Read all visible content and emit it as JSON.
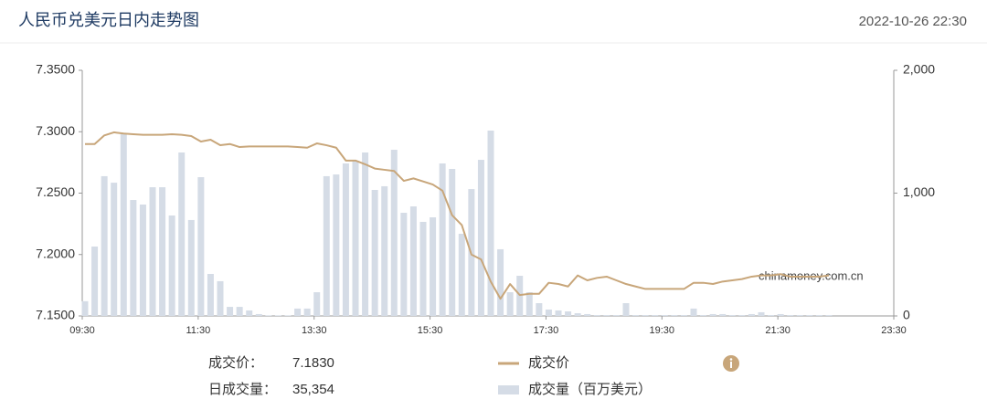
{
  "header": {
    "title": "人民币兑美元日内走势图",
    "timestamp": "2022-10-26 22:30"
  },
  "chart_data": {
    "type": "combo",
    "x": [
      "09:30",
      "09:40",
      "09:50",
      "10:00",
      "10:10",
      "10:20",
      "10:30",
      "10:40",
      "10:50",
      "11:00",
      "11:10",
      "11:20",
      "11:30",
      "11:40",
      "11:50",
      "12:00",
      "12:10",
      "12:20",
      "12:30",
      "12:40",
      "12:50",
      "13:00",
      "13:10",
      "13:20",
      "13:30",
      "13:40",
      "13:50",
      "14:00",
      "14:10",
      "14:20",
      "14:30",
      "14:40",
      "14:50",
      "15:00",
      "15:10",
      "15:20",
      "15:30",
      "15:40",
      "15:50",
      "16:00",
      "16:10",
      "16:20",
      "16:30",
      "16:40",
      "16:50",
      "17:00",
      "17:10",
      "17:20",
      "17:30",
      "17:40",
      "17:50",
      "18:00",
      "18:10",
      "18:20",
      "18:30",
      "18:40",
      "18:50",
      "19:00",
      "19:10",
      "19:20",
      "19:30",
      "19:40",
      "19:50",
      "20:00",
      "20:10",
      "20:20",
      "20:30",
      "20:40",
      "20:50",
      "21:00",
      "21:10",
      "21:20",
      "21:30",
      "21:40",
      "21:50",
      "22:00",
      "22:10",
      "22:20"
    ],
    "xlim": [
      "09:30",
      "23:30"
    ],
    "xticks": [
      "09:30",
      "11:30",
      "13:30",
      "15:30",
      "17:30",
      "19:30",
      "21:30",
      "23:30"
    ],
    "series": [
      {
        "name": "成交量（百万美元）",
        "type": "bar",
        "axis": "y2",
        "color": "#d5dce6",
        "values": [
          120,
          565,
          1138,
          1085,
          1487,
          944,
          907,
          1048,
          1048,
          818,
          1331,
          781,
          1130,
          342,
          283,
          74,
          74,
          45,
          15,
          5,
          5,
          5,
          60,
          60,
          193,
          1138,
          1152,
          1242,
          1264,
          1331,
          1026,
          1056,
          1353,
          840,
          892,
          766,
          803,
          1242,
          1197,
          669,
          1033,
          1271,
          1509,
          543,
          193,
          327,
          193,
          104,
          52,
          45,
          37,
          22,
          15,
          7,
          7,
          7,
          104,
          7,
          7,
          7,
          7,
          7,
          7,
          60,
          7,
          15,
          15,
          7,
          7,
          15,
          30,
          7,
          15,
          7,
          7,
          7,
          7,
          7
        ]
      },
      {
        "name": "成交价",
        "type": "line",
        "color": "#c8a67a",
        "values": [
          7.29,
          7.29,
          7.297,
          7.2995,
          7.2985,
          7.298,
          7.2975,
          7.2975,
          7.2975,
          7.298,
          7.2975,
          7.2965,
          7.292,
          7.2935,
          7.289,
          7.29,
          7.2875,
          7.288,
          7.288,
          7.288,
          7.288,
          7.288,
          7.2875,
          7.287,
          7.2905,
          7.289,
          7.287,
          7.2765,
          7.2765,
          7.2735,
          7.27,
          7.269,
          7.268,
          7.26,
          7.262,
          7.2595,
          7.257,
          7.252,
          7.232,
          7.224,
          7.2,
          7.196,
          7.178,
          7.164,
          7.176,
          7.167,
          7.168,
          7.168,
          7.177,
          7.176,
          7.174,
          7.183,
          7.179,
          7.181,
          7.182,
          7.179,
          7.176,
          7.174,
          7.172,
          7.172,
          7.172,
          7.172,
          7.172,
          7.177,
          7.177,
          7.176,
          7.178,
          7.179,
          7.18,
          7.182,
          7.183,
          7.183,
          7.184,
          7.182,
          7.182,
          7.182,
          7.182,
          7.183
        ]
      }
    ],
    "ylim": [
      7.15,
      7.35
    ],
    "yticks": [
      {
        "value": 7.15,
        "label": "7.1500"
      },
      {
        "value": 7.2,
        "label": "7.2000"
      },
      {
        "value": 7.25,
        "label": "7.2500"
      },
      {
        "value": 7.3,
        "label": "7.3000"
      },
      {
        "value": 7.35,
        "label": "7.3500"
      }
    ],
    "y2lim": [
      0,
      2000
    ],
    "y2ticks": [
      0,
      {
        "value": 1000,
        "label": "1,000"
      },
      {
        "value": 2000,
        "label": "2,000"
      }
    ],
    "grid": false,
    "watermark": "chinamoney.com.cn"
  },
  "summary": [
    {
      "label": "成交价：",
      "value": "7.1830"
    },
    {
      "label": "日成交量：",
      "value": "35,354"
    }
  ]
}
